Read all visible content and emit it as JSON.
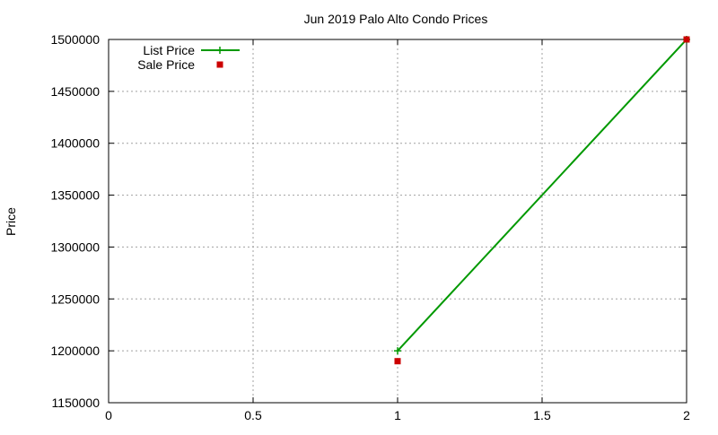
{
  "chart_data": {
    "type": "line",
    "title": "Jun 2019 Palo Alto Condo Prices",
    "xlabel": "",
    "ylabel": "Price",
    "xlim": [
      0,
      2
    ],
    "ylim": [
      1150000,
      1500000
    ],
    "x_ticks": [
      0,
      0.5,
      1,
      1.5,
      2
    ],
    "y_ticks": [
      1150000,
      1200000,
      1250000,
      1300000,
      1350000,
      1400000,
      1450000,
      1500000
    ],
    "grid": true,
    "legend_position": "top-left",
    "series": [
      {
        "name": "List Price",
        "style": "line-points",
        "marker": "plus",
        "color": "#009900",
        "x": [
          1,
          2
        ],
        "y": [
          1200000,
          1500000
        ]
      },
      {
        "name": "Sale Price",
        "style": "points",
        "marker": "square",
        "color": "#cc0000",
        "x": [
          1,
          2
        ],
        "y": [
          1190000,
          1500000
        ]
      }
    ]
  }
}
